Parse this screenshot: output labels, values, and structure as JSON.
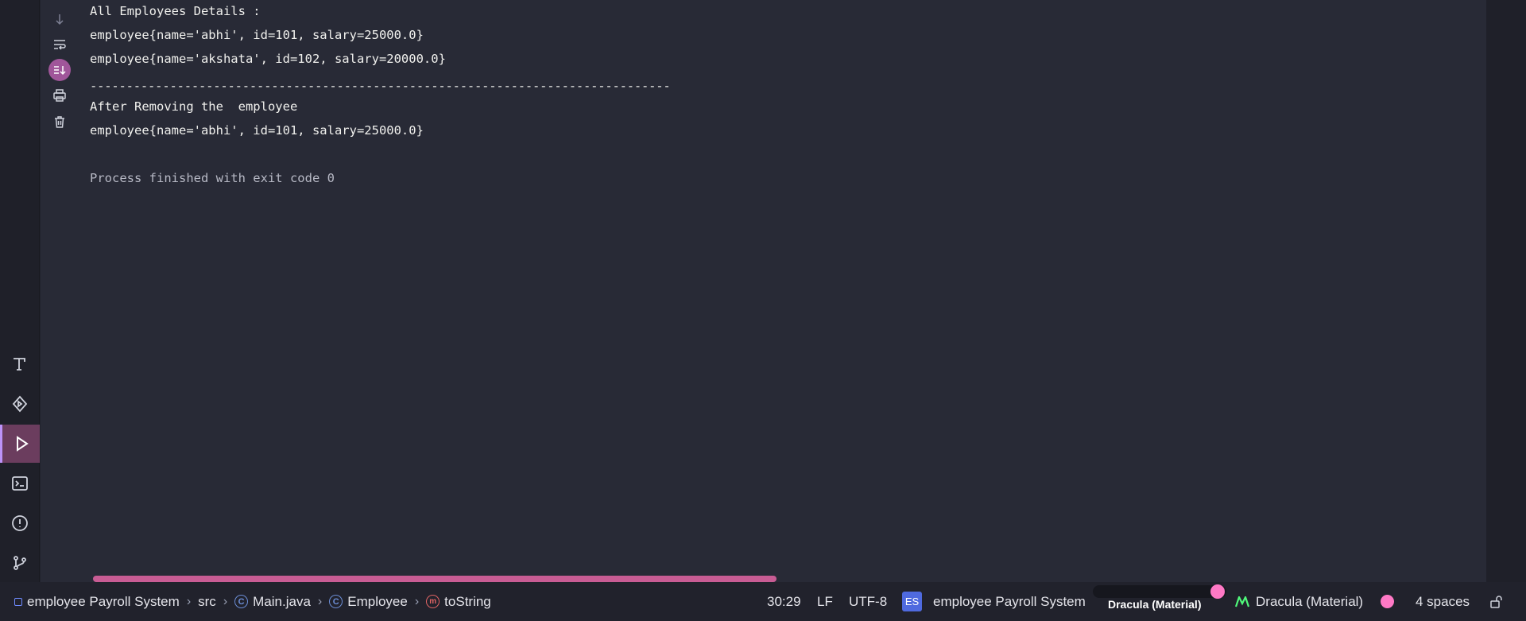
{
  "console": {
    "lines": {
      "l1": "All Employees Details :",
      "l2": "employee{name='abhi', id=101, salary=25000.0}",
      "l3": "employee{name='akshata', id=102, salary=20000.0}",
      "l4": "--------------------------------------------------------------------------------",
      "l5": "After Removing the  employee",
      "l6": "employee{name='abhi', id=101, salary=25000.0}",
      "l7": "Process finished with exit code 0"
    }
  },
  "toolbar_icons": [
    "arrow-down-icon",
    "soft-wrap-icon",
    "scroll-to-end-icon",
    "print-icon",
    "trash-icon"
  ],
  "left_strip_icons": [
    "build-icon",
    "services-icon",
    "run-icon",
    "terminal-icon",
    "problems-icon",
    "git-icon"
  ],
  "breadcrumb": {
    "project": "employee Payroll System",
    "src": "src",
    "file": "Main.java",
    "class": "Employee",
    "method": "toString"
  },
  "status": {
    "position": "30:29",
    "line_ending": "LF",
    "encoding": "UTF-8",
    "project_badge": "ES",
    "project_name": "employee Payroll System",
    "theme_chip": "Dracula (Material)",
    "theme_name": "Dracula (Material)",
    "indent": "4 spaces"
  },
  "colors": {
    "accent": "#ff79c6",
    "run_active": "#6b3d5e",
    "background": "#282a36"
  }
}
